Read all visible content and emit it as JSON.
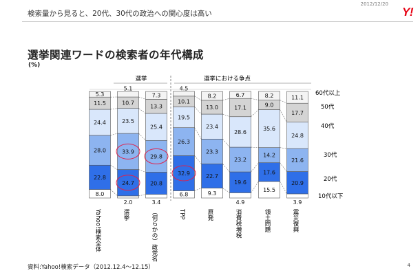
{
  "header": {
    "date": "2012/12/20",
    "logo": "Y!",
    "subtitle": "検索量から見ると、20代、30代の政治への関心度は高い"
  },
  "footer": {
    "source": "資料:Yahoo!検索データ（2012.12.4～12.15）",
    "page": "4"
  },
  "chart_data": {
    "type": "bar",
    "stacked": true,
    "title": "選挙関連ワードの検索者の年代構成",
    "unit": "(%)",
    "group_labels": [
      "選挙",
      "選挙における争点"
    ],
    "categories": [
      "Yahoo!検索全体",
      "選挙",
      "（何らかの）政党名",
      "TPP",
      "原発",
      "消費税増税",
      "領土問題",
      "震災復興"
    ],
    "series": [
      {
        "name": "10代以下",
        "color": "#ffffff",
        "values": [
          8.0,
          2.0,
          3.4,
          6.8,
          9.3,
          4.9,
          15.5,
          3.9
        ]
      },
      {
        "name": "20代",
        "color": "#2f6fe8",
        "values": [
          22.8,
          24.7,
          20.8,
          32.9,
          22.7,
          19.6,
          17.6,
          20.9
        ]
      },
      {
        "name": "30代",
        "color": "#8db4f0",
        "values": [
          28.0,
          33.9,
          29.8,
          26.3,
          23.3,
          23.2,
          14.2,
          21.6
        ]
      },
      {
        "name": "40代",
        "color": "#d9e7fb",
        "values": [
          24.4,
          23.5,
          25.4,
          19.5,
          23.4,
          28.6,
          35.6,
          24.8
        ]
      },
      {
        "name": "50代",
        "color": "#d4d4d4",
        "values": [
          11.5,
          10.7,
          13.3,
          10.1,
          13.0,
          17.1,
          9.0,
          17.7
        ]
      },
      {
        "name": "60代以上",
        "color": "#f4f4f4",
        "values": [
          5.3,
          5.1,
          7.3,
          4.5,
          8.2,
          6.7,
          8.2,
          11.1
        ]
      }
    ],
    "highlight_color": "#e0204a",
    "highlights": [
      {
        "category": "選挙",
        "series": "20代"
      },
      {
        "category": "選挙",
        "series": "30代"
      },
      {
        "category": "（何らかの）政党名",
        "series": "30代"
      },
      {
        "category": "TPP",
        "series": "20代"
      }
    ],
    "ylim": [
      0,
      100
    ],
    "legend_position": "right"
  }
}
